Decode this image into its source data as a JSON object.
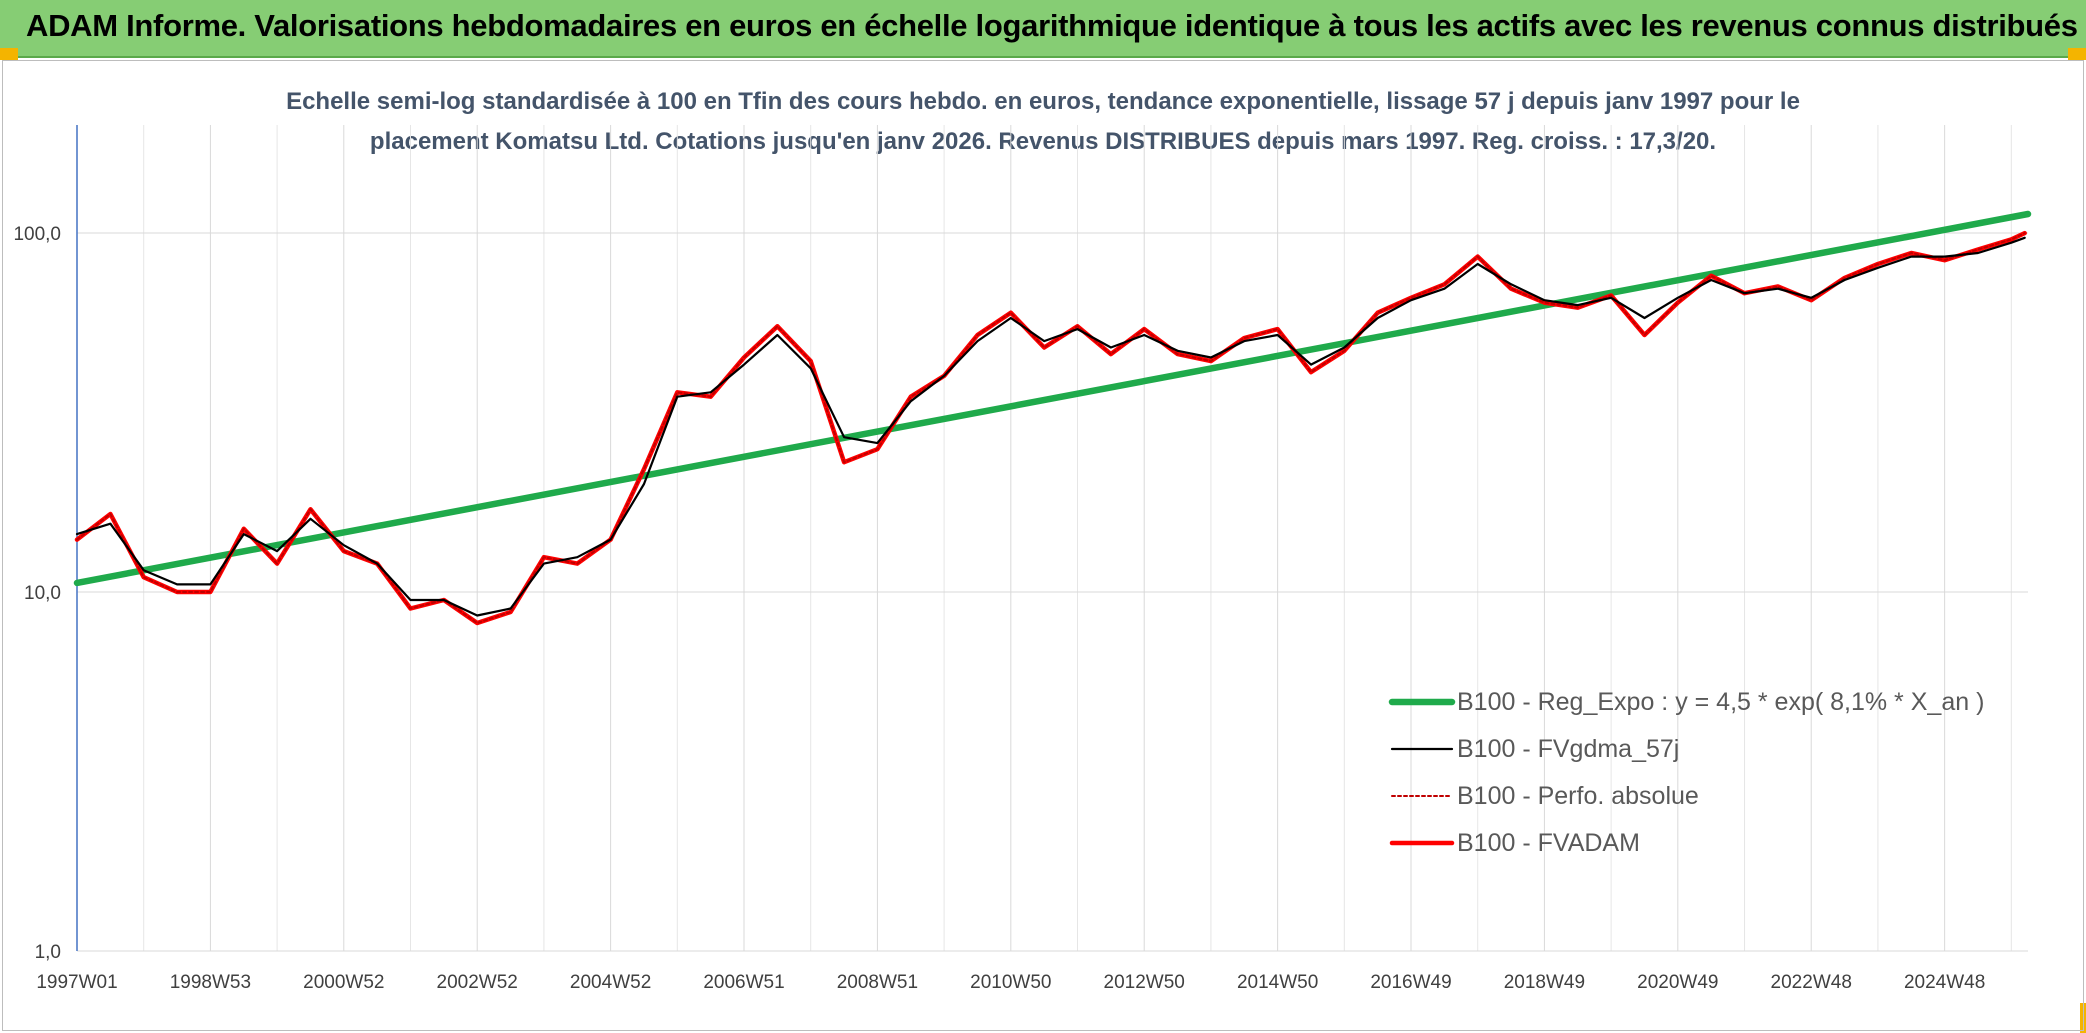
{
  "header": {
    "title": "ADAM Informe. Valorisations hebdomadaires en euros en échelle logarithmique identique à tous les actifs avec les revenus connus distribués"
  },
  "chart_data": {
    "type": "line",
    "title": "Echelle semi-log standardisée à 100 en Tfin des cours hebdo. en euros, tendance exponentielle, lissage 57 j depuis janv 1997 pour le placement Komatsu Ltd. Cotations jusqu'en janv 2026. Revenus DISTRIBUES depuis mars 1997. Reg. croiss. : 17,3/20.",
    "title_lines": [
      "Echelle semi-log standardisée à 100 en Tfin des cours hebdo. en euros, tendance exponentielle, lissage 57 j depuis janv 1997 pour le",
      "placement Komatsu Ltd. Cotations jusqu'en janv 2026. Revenus DISTRIBUES depuis mars 1997. Reg. croiss. : 17,3/20."
    ],
    "y_scale": "log",
    "ylim": [
      1,
      200
    ],
    "y_ticks": [
      {
        "value": 1,
        "label": "1,0"
      },
      {
        "value": 10,
        "label": "10,0"
      },
      {
        "value": 100,
        "label": "100,0"
      }
    ],
    "x_range": [
      1997.0,
      2026.25
    ],
    "x_ticks": [
      {
        "value": 1997.0,
        "label": "1997W01"
      },
      {
        "value": 1999.0,
        "label": "1998W53"
      },
      {
        "value": 2001.0,
        "label": "2000W52"
      },
      {
        "value": 2003.0,
        "label": "2002W52"
      },
      {
        "value": 2005.0,
        "label": "2004W52"
      },
      {
        "value": 2007.0,
        "label": "2006W51"
      },
      {
        "value": 2009.0,
        "label": "2008W51"
      },
      {
        "value": 2011.0,
        "label": "2010W50"
      },
      {
        "value": 2013.0,
        "label": "2012W50"
      },
      {
        "value": 2015.0,
        "label": "2014W50"
      },
      {
        "value": 2017.0,
        "label": "2016W49"
      },
      {
        "value": 2019.0,
        "label": "2018W49"
      },
      {
        "value": 2021.0,
        "label": "2020W49"
      },
      {
        "value": 2023.0,
        "label": "2022W48"
      },
      {
        "value": 2025.0,
        "label": "2024W48"
      }
    ],
    "grid": {
      "vertical": true,
      "horizontal": true
    },
    "legend_position": "bottom-right",
    "series": [
      {
        "name": "B100 - Reg_Expo : y = 4,5 * exp( 8,1% *  X_an )",
        "style": "solid-thick",
        "color": "#1faa4b",
        "x": [
          1997.0,
          2026.25
        ],
        "y": [
          10.6,
          113
        ]
      },
      {
        "name": "B100 - FVgdma_57j",
        "style": "solid-thin",
        "color": "#000000",
        "x": [
          1997.0,
          1997.5,
          1998.0,
          1998.5,
          1999.0,
          1999.5,
          2000.0,
          2000.5,
          2001.0,
          2001.5,
          2002.0,
          2002.5,
          2003.0,
          2003.5,
          2004.0,
          2004.5,
          2005.0,
          2005.5,
          2006.0,
          2006.5,
          2007.0,
          2007.5,
          2008.0,
          2008.5,
          2009.0,
          2009.5,
          2010.0,
          2010.5,
          2011.0,
          2011.5,
          2012.0,
          2012.5,
          2013.0,
          2013.5,
          2014.0,
          2014.5,
          2015.0,
          2015.5,
          2016.0,
          2016.5,
          2017.0,
          2017.5,
          2018.0,
          2018.5,
          2019.0,
          2019.5,
          2020.0,
          2020.5,
          2021.0,
          2021.5,
          2022.0,
          2022.5,
          2023.0,
          2023.5,
          2024.0,
          2024.5,
          2025.0,
          2025.5,
          2026.0,
          2026.2
        ],
        "y": [
          14.5,
          15.5,
          11.5,
          10.5,
          10.5,
          14.5,
          13.0,
          16.0,
          13.5,
          12.0,
          9.5,
          9.5,
          8.6,
          9.0,
          12.0,
          12.5,
          14.0,
          20.0,
          35.0,
          36.0,
          43.0,
          52.0,
          42.0,
          27.0,
          26.0,
          34.0,
          40.0,
          50.0,
          58.0,
          50.0,
          54.0,
          48.0,
          52.0,
          47.0,
          45.0,
          50.0,
          52.0,
          43.0,
          48.0,
          58.0,
          65.0,
          70.0,
          82.0,
          72.0,
          65.0,
          63.0,
          66.0,
          58.0,
          66.0,
          74.0,
          68.0,
          70.0,
          66.0,
          74.0,
          80.0,
          86.0,
          86.0,
          88.0,
          94.0,
          97.0
        ]
      },
      {
        "name": "B100 - Perfo. absolue",
        "style": "dotted",
        "color": "#c00000",
        "x": [
          1997.0,
          1997.5,
          1998.0,
          1998.5,
          1999.0,
          1999.5,
          2000.0,
          2000.5,
          2001.0,
          2001.5,
          2002.0,
          2002.5,
          2003.0,
          2003.5,
          2004.0,
          2004.5,
          2005.0,
          2005.5,
          2006.0,
          2006.5,
          2007.0,
          2007.5,
          2008.0,
          2008.5,
          2009.0,
          2009.5,
          2010.0,
          2010.5,
          2011.0,
          2011.5,
          2012.0,
          2012.5,
          2013.0,
          2013.5,
          2014.0,
          2014.5,
          2015.0,
          2015.5,
          2016.0,
          2016.5,
          2017.0,
          2017.5,
          2018.0,
          2018.5,
          2019.0,
          2019.5,
          2020.0,
          2020.5,
          2021.0,
          2021.5,
          2022.0,
          2022.5,
          2023.0,
          2023.5,
          2024.0,
          2024.5,
          2025.0,
          2025.5,
          2026.0,
          2026.2
        ],
        "y": [
          14.0,
          16.5,
          11.0,
          10.0,
          10.0,
          15.0,
          12.0,
          17.0,
          13.0,
          12.0,
          9.0,
          9.5,
          8.2,
          8.8,
          12.5,
          12.0,
          14.0,
          22.0,
          36.0,
          35.0,
          45.0,
          55.0,
          44.0,
          23.0,
          25.0,
          35.0,
          40.0,
          52.0,
          60.0,
          48.0,
          55.0,
          46.0,
          54.0,
          46.0,
          44.0,
          51.0,
          54.0,
          41.0,
          47.0,
          60.0,
          66.0,
          72.0,
          86.0,
          70.0,
          64.0,
          62.0,
          67.0,
          52.0,
          64.0,
          76.0,
          68.0,
          71.0,
          65.0,
          75.0,
          82.0,
          88.0,
          84.0,
          90.0,
          96.0,
          100.0
        ]
      },
      {
        "name": "B100 - FVADAM",
        "style": "solid-thick",
        "color": "#ff0000",
        "x": [
          1997.0,
          1997.5,
          1998.0,
          1998.5,
          1999.0,
          1999.5,
          2000.0,
          2000.5,
          2001.0,
          2001.5,
          2002.0,
          2002.5,
          2003.0,
          2003.5,
          2004.0,
          2004.5,
          2005.0,
          2005.5,
          2006.0,
          2006.5,
          2007.0,
          2007.5,
          2008.0,
          2008.5,
          2009.0,
          2009.5,
          2010.0,
          2010.5,
          2011.0,
          2011.5,
          2012.0,
          2012.5,
          2013.0,
          2013.5,
          2014.0,
          2014.5,
          2015.0,
          2015.5,
          2016.0,
          2016.5,
          2017.0,
          2017.5,
          2018.0,
          2018.5,
          2019.0,
          2019.5,
          2020.0,
          2020.5,
          2021.0,
          2021.5,
          2022.0,
          2022.5,
          2023.0,
          2023.5,
          2024.0,
          2024.5,
          2025.0,
          2025.5,
          2026.0,
          2026.2
        ],
        "y": [
          14.0,
          16.5,
          11.0,
          10.0,
          10.0,
          15.0,
          12.0,
          17.0,
          13.0,
          12.0,
          9.0,
          9.5,
          8.2,
          8.8,
          12.5,
          12.0,
          14.0,
          22.0,
          36.0,
          35.0,
          45.0,
          55.0,
          44.0,
          23.0,
          25.0,
          35.0,
          40.0,
          52.0,
          60.0,
          48.0,
          55.0,
          46.0,
          54.0,
          46.0,
          44.0,
          51.0,
          54.0,
          41.0,
          47.0,
          60.0,
          66.0,
          72.0,
          86.0,
          70.0,
          64.0,
          62.0,
          67.0,
          52.0,
          64.0,
          76.0,
          68.0,
          71.0,
          65.0,
          75.0,
          82.0,
          88.0,
          84.0,
          90.0,
          96.0,
          100.0
        ]
      }
    ]
  }
}
